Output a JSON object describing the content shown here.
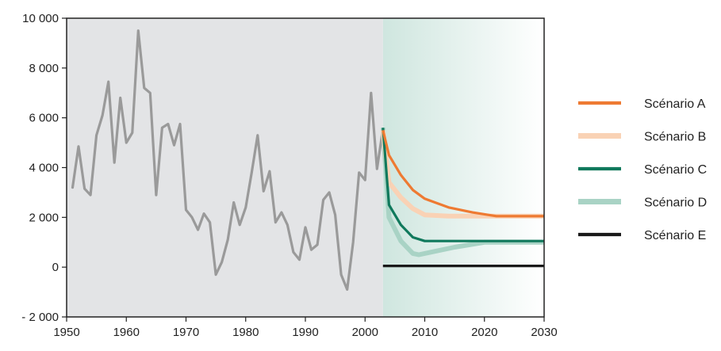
{
  "chart_data": {
    "type": "line",
    "title": "",
    "xlabel": "",
    "ylabel": "",
    "xlim": [
      1950,
      2030
    ],
    "ylim": [
      -2000,
      10000
    ],
    "x_ticks": [
      1950,
      1960,
      1970,
      1980,
      1990,
      2000,
      2010,
      2020,
      2030
    ],
    "x_tick_labels": [
      "1950",
      "1960",
      "1970",
      "1980",
      "1990",
      "2000",
      "2010",
      "2020",
      "2030"
    ],
    "y_ticks": [
      -2000,
      0,
      2000,
      4000,
      6000,
      8000,
      10000
    ],
    "y_tick_labels": [
      "- 2 000",
      "0",
      "2 000",
      "4 000",
      "6 000",
      "8 000",
      "10 000"
    ],
    "grid": false,
    "legend_position": "right",
    "background_regions": [
      {
        "from": 1950,
        "to": 2003,
        "color": "#e3e4e6"
      },
      {
        "from": 2003,
        "to": 2030,
        "color_start": "#cfe6df",
        "color_end": "#ffffff"
      }
    ],
    "historical": {
      "name": "",
      "color": "#9a9a9a",
      "x": [
        1951,
        1952,
        1953,
        1954,
        1955,
        1956,
        1957,
        1958,
        1959,
        1960,
        1961,
        1962,
        1963,
        1964,
        1965,
        1966,
        1967,
        1968,
        1969,
        1970,
        1971,
        1972,
        1973,
        1974,
        1975,
        1976,
        1977,
        1978,
        1979,
        1980,
        1981,
        1982,
        1983,
        1984,
        1985,
        1986,
        1987,
        1988,
        1989,
        1990,
        1991,
        1992,
        1993,
        1994,
        1995,
        1996,
        1997,
        1998,
        1999,
        2000,
        2001,
        2002,
        2003
      ],
      "values": [
        3200,
        4850,
        3150,
        2900,
        5300,
        6100,
        7450,
        4200,
        6800,
        5000,
        5400,
        9500,
        7200,
        7000,
        2900,
        5600,
        5750,
        4900,
        5750,
        2300,
        2000,
        1500,
        2150,
        1800,
        -300,
        200,
        1100,
        2600,
        1700,
        2400,
        3800,
        5300,
        3050,
        3850,
        1800,
        2200,
        1700,
        600,
        300,
        1600,
        700,
        900,
        2700,
        3000,
        2100,
        -300,
        -900,
        1000,
        3800,
        3500,
        7000,
        3950,
        5550
      ]
    },
    "series": [
      {
        "name": "Scénario A",
        "color": "#ee7a32",
        "x": [
          2003,
          2004,
          2006,
          2008,
          2010,
          2014,
          2018,
          2022,
          2026,
          2030
        ],
        "values": [
          5500,
          4500,
          3700,
          3100,
          2750,
          2400,
          2200,
          2050,
          2050,
          2050
        ]
      },
      {
        "name": "Scénario B",
        "color": "#f9d2b5",
        "x": [
          2003,
          2004,
          2006,
          2008,
          2010,
          2014,
          2018,
          2022,
          2026,
          2030
        ],
        "values": [
          5500,
          3400,
          2800,
          2350,
          2100,
          2050,
          2050,
          2050,
          2050,
          2050
        ]
      },
      {
        "name": "Scénario C",
        "color": "#10795c",
        "x": [
          2003,
          2004,
          2006,
          2008,
          2010,
          2012,
          2016,
          2020,
          2025,
          2030
        ],
        "values": [
          5600,
          2500,
          1700,
          1200,
          1050,
          1050,
          1050,
          1050,
          1050,
          1050
        ]
      },
      {
        "name": "Scénario D",
        "color": "#a9d3c5",
        "x": [
          2003,
          2004,
          2006,
          2008,
          2009,
          2011,
          2015,
          2020,
          2025,
          2030
        ],
        "values": [
          5600,
          2000,
          1050,
          550,
          500,
          600,
          800,
          1000,
          1000,
          1000
        ]
      },
      {
        "name": "Scénario E",
        "color": "#1a1a1a",
        "x": [
          2003,
          2030
        ],
        "values": [
          50,
          50
        ]
      }
    ]
  }
}
